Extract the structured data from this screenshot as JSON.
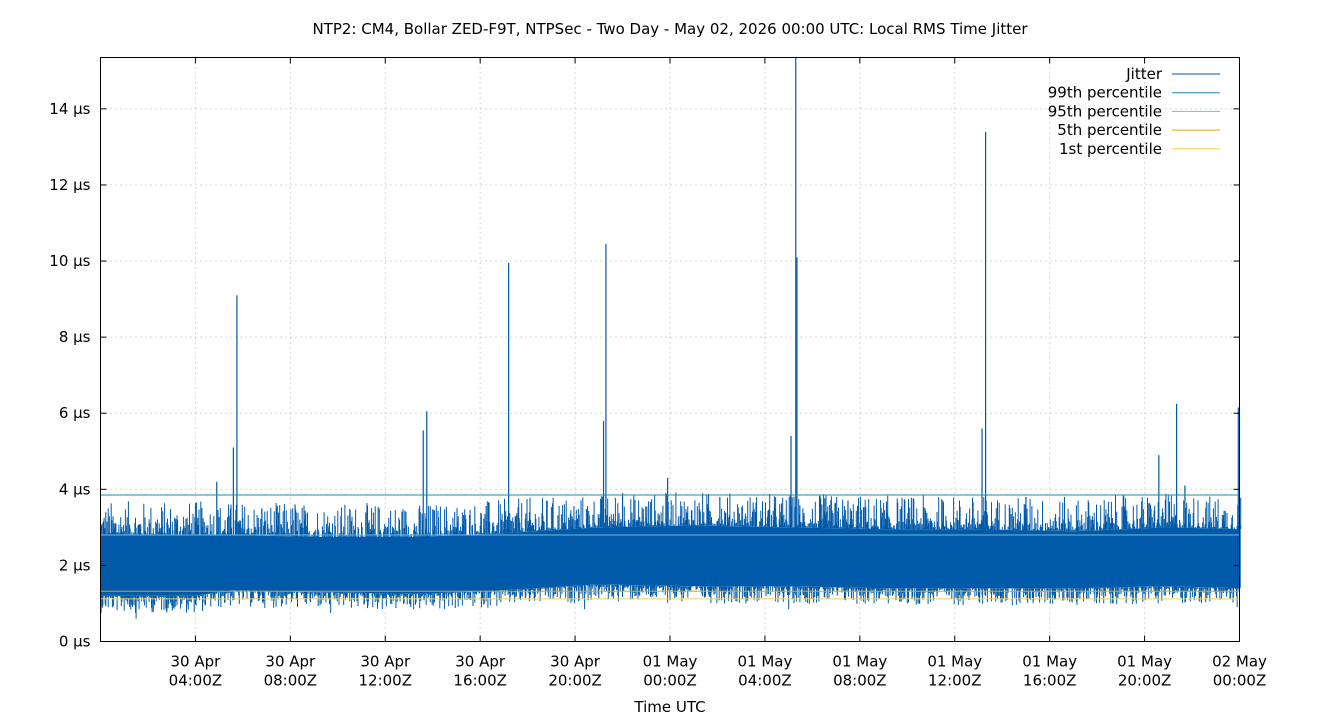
{
  "chart_data": {
    "type": "line",
    "title": "NTP2: CM4, Bollar ZED-F9T, NTPSec - Two Day - May 02, 2026 00:00 UTC: Local RMS Time Jitter",
    "xlabel": "Time UTC",
    "ylabel": "",
    "x_range_hours": [
      -1,
      47
    ],
    "ylim": [
      0,
      15.35
    ],
    "grid": true,
    "legend_position": "top-right",
    "y_ticks": [
      {
        "value": 0,
        "label": "0 µs"
      },
      {
        "value": 2,
        "label": "2 µs"
      },
      {
        "value": 4,
        "label": "4 µs"
      },
      {
        "value": 6,
        "label": "6 µs"
      },
      {
        "value": 8,
        "label": "8 µs"
      },
      {
        "value": 10,
        "label": "10 µs"
      },
      {
        "value": 12,
        "label": "12 µs"
      },
      {
        "value": 14,
        "label": "14 µs"
      }
    ],
    "x_ticks": [
      {
        "hour": 3,
        "line1": "30 Apr",
        "line2": "04:00Z"
      },
      {
        "hour": 7,
        "line1": "30 Apr",
        "line2": "08:00Z"
      },
      {
        "hour": 11,
        "line1": "30 Apr",
        "line2": "12:00Z"
      },
      {
        "hour": 15,
        "line1": "30 Apr",
        "line2": "16:00Z"
      },
      {
        "hour": 19,
        "line1": "30 Apr",
        "line2": "20:00Z"
      },
      {
        "hour": 23,
        "line1": "01 May",
        "line2": "00:00Z"
      },
      {
        "hour": 27,
        "line1": "01 May",
        "line2": "04:00Z"
      },
      {
        "hour": 31,
        "line1": "01 May",
        "line2": "08:00Z"
      },
      {
        "hour": 35,
        "line1": "01 May",
        "line2": "12:00Z"
      },
      {
        "hour": 39,
        "line1": "01 May",
        "line2": "16:00Z"
      },
      {
        "hour": 43,
        "line1": "01 May",
        "line2": "20:00Z"
      },
      {
        "hour": 47,
        "line1": "02 May",
        "line2": "00:00Z"
      }
    ],
    "jitter_band": [
      {
        "hour": -1.0,
        "low": 1.2,
        "high": 2.8
      },
      {
        "hour": 3.0,
        "low": 1.2,
        "high": 2.8
      },
      {
        "hour": 4.5,
        "low": 1.35,
        "high": 2.8
      },
      {
        "hour": 8.0,
        "low": 1.3,
        "high": 2.75
      },
      {
        "hour": 12.5,
        "low": 1.25,
        "high": 2.75
      },
      {
        "hour": 16.0,
        "low": 1.35,
        "high": 2.85
      },
      {
        "hour": 20.0,
        "low": 1.5,
        "high": 3.0
      },
      {
        "hour": 24.0,
        "low": 1.45,
        "high": 3.05
      },
      {
        "hour": 28.0,
        "low": 1.45,
        "high": 3.0
      },
      {
        "hour": 32.0,
        "low": 1.4,
        "high": 2.95
      },
      {
        "hour": 36.0,
        "low": 1.4,
        "high": 2.95
      },
      {
        "hour": 40.0,
        "low": 1.4,
        "high": 2.9
      },
      {
        "hour": 44.0,
        "low": 1.45,
        "high": 3.0
      },
      {
        "hour": 47.05,
        "low": 1.4,
        "high": 2.95
      }
    ],
    "spikes": [
      {
        "hour": 3.9,
        "value": 4.2
      },
      {
        "hour": 4.6,
        "value": 5.1
      },
      {
        "hour": 4.75,
        "value": 9.1
      },
      {
        "hour": 5.8,
        "value": 3.5
      },
      {
        "hour": 7.2,
        "value": 3.6
      },
      {
        "hour": 12.6,
        "value": 5.55
      },
      {
        "hour": 12.75,
        "value": 6.05
      },
      {
        "hour": 16.2,
        "value": 9.95
      },
      {
        "hour": 20.2,
        "value": 5.8
      },
      {
        "hour": 20.3,
        "value": 10.45
      },
      {
        "hour": 21.0,
        "value": 3.9
      },
      {
        "hour": 22.9,
        "value": 4.3
      },
      {
        "hour": 25.1,
        "value": 3.8
      },
      {
        "hour": 28.1,
        "value": 5.4
      },
      {
        "hour": 28.3,
        "value": 15.35
      },
      {
        "hour": 28.35,
        "value": 10.1
      },
      {
        "hour": 30.5,
        "value": 3.7
      },
      {
        "hour": 36.15,
        "value": 5.6
      },
      {
        "hour": 36.3,
        "value": 13.4
      },
      {
        "hour": 38.0,
        "value": 3.8
      },
      {
        "hour": 43.6,
        "value": 4.9
      },
      {
        "hour": 44.35,
        "value": 6.25
      },
      {
        "hour": 44.7,
        "value": 4.1
      },
      {
        "hour": 46.95,
        "value": 6.15
      }
    ],
    "dips": [
      {
        "hour": 0.5,
        "value": 0.6
      },
      {
        "hour": 4.7,
        "value": 1.4
      },
      {
        "hour": 8.7,
        "value": 0.75
      },
      {
        "hour": 13.5,
        "value": 0.85
      },
      {
        "hour": 19.4,
        "value": 0.85
      },
      {
        "hour": 28.0,
        "value": 0.85
      },
      {
        "hour": 46.9,
        "value": 0.9
      }
    ],
    "series": [
      {
        "name": "Jitter",
        "color": "#005aa9"
      },
      {
        "name": "99th percentile",
        "color": "#1a8ca0",
        "value": 3.85
      },
      {
        "name": "95th percentile",
        "color": "#79b8d8",
        "value": 2.8
      },
      {
        "name": "5th percentile",
        "color": "#e0a800",
        "value": 1.32
      },
      {
        "name": "1st percentile",
        "color": "#f0d050",
        "value": 1.12
      }
    ]
  }
}
